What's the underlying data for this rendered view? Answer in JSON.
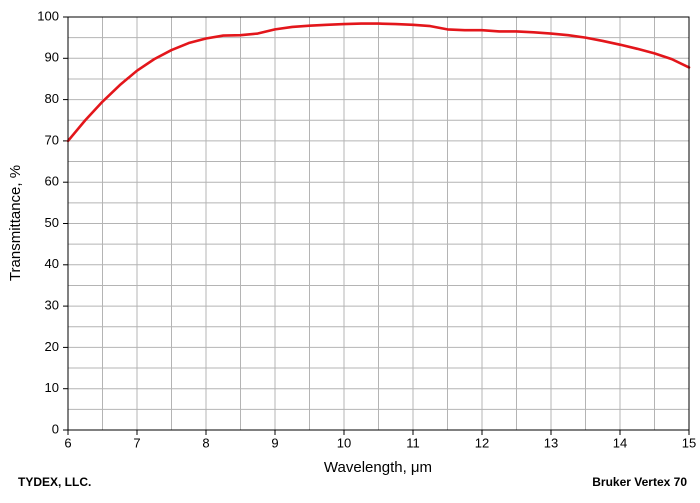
{
  "chart_data": {
    "type": "line",
    "x_label": "Wavelength, μm",
    "y_label": "Transmittance, %",
    "footer_left": "TYDEX, LLC.",
    "footer_right": "Bruker Vertex 70",
    "xlim": [
      6,
      15
    ],
    "ylim": [
      0,
      100
    ],
    "xticks": [
      6,
      7,
      8,
      9,
      10,
      11,
      12,
      13,
      14,
      15
    ],
    "yticks": [
      0,
      10,
      20,
      30,
      40,
      50,
      60,
      70,
      80,
      90,
      100
    ],
    "grid": true,
    "x": [
      6,
      6.25,
      6.5,
      6.75,
      7,
      7.25,
      7.5,
      7.75,
      8,
      8.25,
      8.5,
      8.75,
      9,
      9.25,
      9.5,
      9.75,
      10,
      10.25,
      10.5,
      10.75,
      11,
      11.25,
      11.5,
      11.75,
      12,
      12.25,
      12.5,
      12.75,
      13,
      13.25,
      13.5,
      13.75,
      14,
      14.25,
      14.5,
      14.75,
      15
    ],
    "series": [
      {
        "color": "#e3161b",
        "values": [
          70,
          75,
          79.5,
          83.5,
          87,
          89.8,
          92,
          93.7,
          94.8,
          95.5,
          95.6,
          96,
          97,
          97.6,
          97.9,
          98.1,
          98.3,
          98.4,
          98.4,
          98.3,
          98.1,
          97.8,
          97,
          96.8,
          96.8,
          96.5,
          96.5,
          96.3,
          96,
          95.6,
          95,
          94.2,
          93.3,
          92.3,
          91.2,
          89.8,
          87.8
        ]
      }
    ]
  }
}
